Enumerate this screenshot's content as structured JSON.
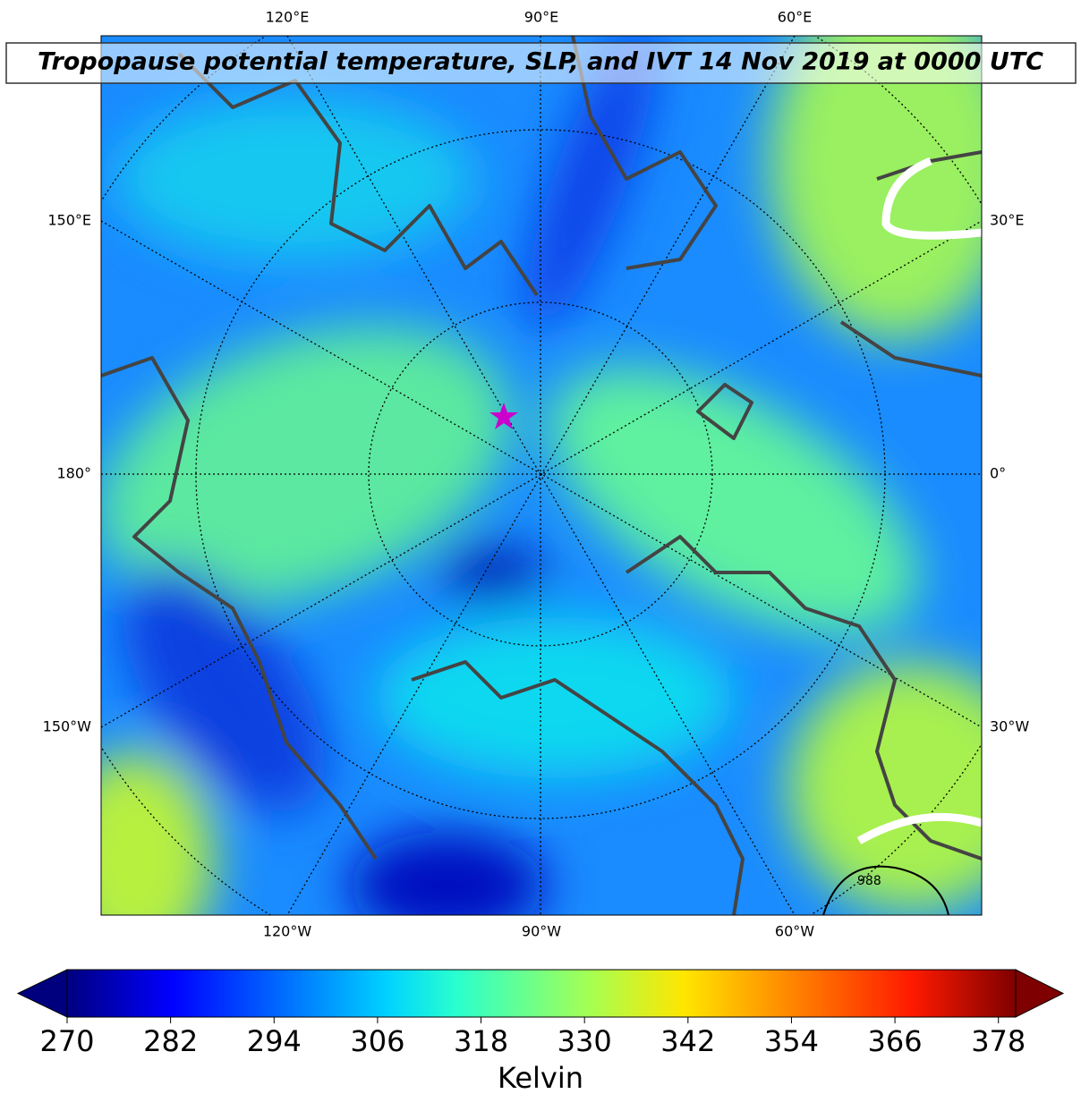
{
  "title": "Tropopause potential temperature, SLP, and IVT 14 Nov 2019 at 0000 UTC",
  "map": {
    "lon_labels": {
      "top": [
        "120°E",
        "90°E",
        "60°E"
      ],
      "left": [
        "150°E",
        "180°",
        "150°W"
      ],
      "right": [
        "30°E",
        "0°",
        "30°W"
      ],
      "bottom": [
        "120°W",
        "90°W",
        "60°W"
      ]
    },
    "contour_label": "988"
  },
  "colorbar": {
    "lim": [
      270,
      380
    ],
    "ticks": [
      270,
      282,
      294,
      306,
      318,
      330,
      342,
      354,
      366,
      378
    ],
    "label": "Kelvin"
  }
}
